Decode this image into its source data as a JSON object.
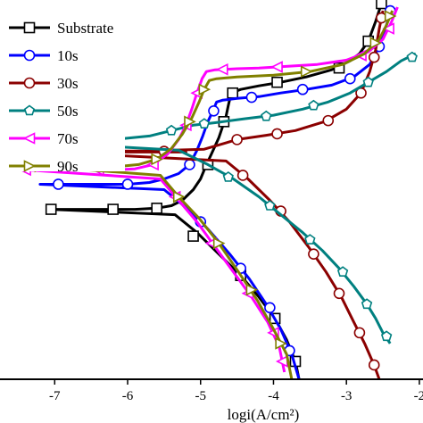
{
  "chart_data": {
    "type": "line",
    "title": "",
    "xlabel": "logi(A/cm²)",
    "ylabel": "",
    "xlim": [
      -7.75,
      -1.95
    ],
    "ylim": [
      -1.4,
      -0.34
    ],
    "x_ticks": [
      -7,
      -6,
      -5,
      -4,
      -3,
      -2
    ],
    "x_tick_labels": [
      "-7",
      "-6",
      "-5",
      "-4",
      "-3",
      "-2"
    ],
    "grid": false,
    "legend_position": "top-left",
    "series": [
      {
        "name": "Substrate",
        "color": "#000000",
        "marker": "square",
        "points": [
          [
            -7.05,
            -0.925
          ],
          [
            -6.6,
            -0.925
          ],
          [
            -6.2,
            -0.925
          ],
          [
            -5.9,
            -0.925
          ],
          [
            -5.6,
            -0.922
          ],
          [
            -5.4,
            -0.915
          ],
          [
            -5.25,
            -0.9
          ],
          [
            -5.1,
            -0.87
          ],
          [
            -5.0,
            -0.84
          ],
          [
            -4.93,
            -0.805
          ],
          [
            -4.85,
            -0.77
          ],
          [
            -4.75,
            -0.725
          ],
          [
            -4.7,
            -0.695
          ],
          [
            -4.65,
            -0.665
          ],
          [
            -4.62,
            -0.635
          ],
          [
            -4.58,
            -0.6
          ],
          [
            -4.45,
            -0.59
          ],
          [
            -4.2,
            -0.58
          ],
          [
            -3.9,
            -0.57
          ],
          [
            -3.55,
            -0.555
          ],
          [
            -3.2,
            -0.535
          ],
          [
            -2.95,
            -0.51
          ],
          [
            -2.82,
            -0.49
          ],
          [
            -2.7,
            -0.455
          ],
          [
            -2.6,
            -0.4
          ],
          [
            -2.52,
            -0.35
          ],
          [
            -5.35,
            -0.94
          ],
          [
            -5.05,
            -0.99
          ],
          [
            -4.75,
            -1.05
          ],
          [
            -4.45,
            -1.11
          ],
          [
            -4.2,
            -1.17
          ],
          [
            -3.98,
            -1.23
          ],
          [
            -3.82,
            -1.29
          ],
          [
            -3.7,
            -1.35
          ],
          [
            -3.65,
            -1.4
          ]
        ],
        "markers": [
          [
            -7.05,
            -0.925
          ],
          [
            -6.2,
            -0.925
          ],
          [
            -5.6,
            -0.922
          ],
          [
            -4.9,
            -0.8
          ],
          [
            -4.68,
            -0.68
          ],
          [
            -4.56,
            -0.6
          ],
          [
            -3.95,
            -0.57
          ],
          [
            -3.1,
            -0.53
          ],
          [
            -2.7,
            -0.455
          ],
          [
            -2.52,
            -0.35
          ],
          [
            -5.1,
            -1.0
          ],
          [
            -4.45,
            -1.11
          ],
          [
            -3.98,
            -1.23
          ],
          [
            -3.7,
            -1.35
          ]
        ]
      },
      {
        "name": "10s",
        "color": "#0000ff",
        "marker": "circle",
        "points": [
          [
            -7.2,
            -0.855
          ],
          [
            -6.7,
            -0.855
          ],
          [
            -6.35,
            -0.855
          ],
          [
            -6.0,
            -0.855
          ],
          [
            -5.7,
            -0.85
          ],
          [
            -5.5,
            -0.84
          ],
          [
            -5.3,
            -0.825
          ],
          [
            -5.15,
            -0.8
          ],
          [
            -5.05,
            -0.76
          ],
          [
            -4.97,
            -0.72
          ],
          [
            -4.9,
            -0.68
          ],
          [
            -4.83,
            -0.65
          ],
          [
            -4.78,
            -0.625
          ],
          [
            -4.7,
            -0.62
          ],
          [
            -4.5,
            -0.615
          ],
          [
            -4.2,
            -0.61
          ],
          [
            -3.9,
            -0.6
          ],
          [
            -3.55,
            -0.59
          ],
          [
            -3.2,
            -0.578
          ],
          [
            -2.9,
            -0.555
          ],
          [
            -2.68,
            -0.52
          ],
          [
            -2.55,
            -0.47
          ],
          [
            -2.45,
            -0.41
          ],
          [
            -2.38,
            -0.36
          ],
          [
            -5.5,
            -0.87
          ],
          [
            -5.2,
            -0.92
          ],
          [
            -4.9,
            -0.98
          ],
          [
            -4.6,
            -1.05
          ],
          [
            -4.33,
            -1.12
          ],
          [
            -4.1,
            -1.19
          ],
          [
            -3.9,
            -1.26
          ],
          [
            -3.75,
            -1.33
          ],
          [
            -3.65,
            -1.4
          ]
        ],
        "markers": [
          [
            -6.95,
            -0.855
          ],
          [
            -6.0,
            -0.855
          ],
          [
            -5.15,
            -0.8
          ],
          [
            -4.82,
            -0.65
          ],
          [
            -4.3,
            -0.612
          ],
          [
            -3.6,
            -0.59
          ],
          [
            -2.95,
            -0.56
          ],
          [
            -2.55,
            -0.47
          ],
          [
            -2.4,
            -0.37
          ],
          [
            -5.0,
            -0.96
          ],
          [
            -4.45,
            -1.09
          ],
          [
            -4.05,
            -1.2
          ],
          [
            -3.78,
            -1.32
          ]
        ]
      },
      {
        "name": "30s",
        "color": "#8b0000",
        "marker": "circle",
        "points": [
          [
            -7.05,
            -0.765
          ],
          [
            -6.6,
            -0.763
          ],
          [
            -6.2,
            -0.762
          ],
          [
            -5.8,
            -0.762
          ],
          [
            -5.5,
            -0.763
          ],
          [
            -5.2,
            -0.765
          ],
          [
            -4.95,
            -0.757
          ],
          [
            -4.75,
            -0.745
          ],
          [
            -4.5,
            -0.73
          ],
          [
            -4.1,
            -0.718
          ],
          [
            -3.7,
            -0.705
          ],
          [
            -3.3,
            -0.68
          ],
          [
            -3.0,
            -0.645
          ],
          [
            -2.8,
            -0.6
          ],
          [
            -2.68,
            -0.54
          ],
          [
            -2.6,
            -0.48
          ],
          [
            -2.55,
            -0.42
          ],
          [
            -2.5,
            -0.37
          ],
          [
            -4.65,
            -0.79
          ],
          [
            -4.35,
            -0.84
          ],
          [
            -4.05,
            -0.9
          ],
          [
            -3.78,
            -0.96
          ],
          [
            -3.52,
            -1.03
          ],
          [
            -3.28,
            -1.1
          ],
          [
            -3.07,
            -1.17
          ],
          [
            -2.9,
            -1.24
          ],
          [
            -2.75,
            -1.3
          ],
          [
            -2.62,
            -1.36
          ],
          [
            -2.55,
            -1.4
          ]
        ],
        "markers": [
          [
            -7.05,
            -0.765
          ],
          [
            -6.2,
            -0.762
          ],
          [
            -5.5,
            -0.763
          ],
          [
            -4.5,
            -0.73
          ],
          [
            -3.95,
            -0.714
          ],
          [
            -3.25,
            -0.677
          ],
          [
            -2.8,
            -0.6
          ],
          [
            -2.62,
            -0.5
          ],
          [
            -2.52,
            -0.39
          ],
          [
            -4.42,
            -0.83
          ],
          [
            -3.9,
            -0.93
          ],
          [
            -3.45,
            -1.05
          ],
          [
            -3.1,
            -1.16
          ],
          [
            -2.82,
            -1.27
          ],
          [
            -2.62,
            -1.36
          ]
        ]
      },
      {
        "name": "50s",
        "color": "#008080",
        "marker": "pentagon",
        "points": [
          [
            -7.75,
            -0.732
          ],
          [
            -7.2,
            -0.732
          ],
          [
            -6.6,
            -0.73
          ],
          [
            -6.1,
            -0.728
          ],
          [
            -5.7,
            -0.72
          ],
          [
            -5.4,
            -0.705
          ],
          [
            -5.1,
            -0.69
          ],
          [
            -4.8,
            -0.683
          ],
          [
            -4.4,
            -0.672
          ],
          [
            -4.0,
            -0.662
          ],
          [
            -3.6,
            -0.645
          ],
          [
            -3.25,
            -0.625
          ],
          [
            -2.95,
            -0.6
          ],
          [
            -2.7,
            -0.57
          ],
          [
            -2.45,
            -0.54
          ],
          [
            -2.25,
            -0.51
          ],
          [
            -2.05,
            -0.49
          ],
          [
            -5.3,
            -0.76
          ],
          [
            -4.9,
            -0.8
          ],
          [
            -4.55,
            -0.84
          ],
          [
            -4.2,
            -0.89
          ],
          [
            -3.9,
            -0.94
          ],
          [
            -3.6,
            -0.99
          ],
          [
            -3.33,
            -1.04
          ],
          [
            -3.1,
            -1.09
          ],
          [
            -2.9,
            -1.14
          ],
          [
            -2.72,
            -1.19
          ],
          [
            -2.6,
            -1.23
          ],
          [
            -2.5,
            -1.27
          ],
          [
            -2.4,
            -1.3
          ]
        ],
        "markers": [
          [
            -5.4,
            -0.705
          ],
          [
            -4.95,
            -0.686
          ],
          [
            -4.1,
            -0.665
          ],
          [
            -3.45,
            -0.635
          ],
          [
            -2.7,
            -0.57
          ],
          [
            -2.1,
            -0.5
          ],
          [
            -4.62,
            -0.835
          ],
          [
            -4.05,
            -0.915
          ],
          [
            -3.5,
            -1.01
          ],
          [
            -3.05,
            -1.1
          ],
          [
            -2.72,
            -1.19
          ],
          [
            -2.45,
            -1.28
          ]
        ]
      },
      {
        "name": "70s",
        "color": "#ff00ff",
        "marker": "triangle-left",
        "points": [
          [
            -7.4,
            -0.815
          ],
          [
            -7.0,
            -0.815
          ],
          [
            -6.6,
            -0.815
          ],
          [
            -6.2,
            -0.815
          ],
          [
            -5.9,
            -0.812
          ],
          [
            -5.65,
            -0.8
          ],
          [
            -5.45,
            -0.77
          ],
          [
            -5.3,
            -0.73
          ],
          [
            -5.2,
            -0.69
          ],
          [
            -5.12,
            -0.645
          ],
          [
            -5.05,
            -0.6
          ],
          [
            -4.98,
            -0.56
          ],
          [
            -4.92,
            -0.54
          ],
          [
            -4.8,
            -0.535
          ],
          [
            -4.5,
            -0.532
          ],
          [
            -4.2,
            -0.53
          ],
          [
            -3.8,
            -0.525
          ],
          [
            -3.4,
            -0.52
          ],
          [
            -3.0,
            -0.508
          ],
          [
            -2.7,
            -0.485
          ],
          [
            -2.5,
            -0.45
          ],
          [
            -2.38,
            -0.4
          ],
          [
            -2.3,
            -0.36
          ],
          [
            -5.55,
            -0.84
          ],
          [
            -5.3,
            -0.9
          ],
          [
            -5.05,
            -0.96
          ],
          [
            -4.8,
            -1.03
          ],
          [
            -4.55,
            -1.1
          ],
          [
            -4.3,
            -1.17
          ],
          [
            -4.08,
            -1.24
          ],
          [
            -3.92,
            -1.31
          ],
          [
            -3.85,
            -1.38
          ]
        ],
        "markers": [
          [
            -7.4,
            -0.815
          ],
          [
            -6.4,
            -0.815
          ],
          [
            -5.65,
            -0.8
          ],
          [
            -5.2,
            -0.69
          ],
          [
            -5.05,
            -0.6
          ],
          [
            -4.7,
            -0.534
          ],
          [
            -3.95,
            -0.527
          ],
          [
            -2.8,
            -0.495
          ],
          [
            -2.42,
            -0.42
          ],
          [
            -5.35,
            -0.89
          ],
          [
            -4.85,
            -1.02
          ],
          [
            -4.35,
            -1.16
          ],
          [
            -4.0,
            -1.27
          ],
          [
            -3.88,
            -1.35
          ]
        ]
      },
      {
        "name": "90s",
        "color": "#808000",
        "marker": "triangle-right",
        "points": [
          [
            -7.2,
            -0.805
          ],
          [
            -6.8,
            -0.805
          ],
          [
            -6.45,
            -0.805
          ],
          [
            -6.1,
            -0.805
          ],
          [
            -5.85,
            -0.8
          ],
          [
            -5.6,
            -0.785
          ],
          [
            -5.4,
            -0.755
          ],
          [
            -5.25,
            -0.715
          ],
          [
            -5.12,
            -0.67
          ],
          [
            -5.02,
            -0.625
          ],
          [
            -4.95,
            -0.59
          ],
          [
            -4.88,
            -0.565
          ],
          [
            -4.78,
            -0.56
          ],
          [
            -4.5,
            -0.555
          ],
          [
            -4.0,
            -0.55
          ],
          [
            -3.5,
            -0.54
          ],
          [
            -3.05,
            -0.52
          ],
          [
            -2.75,
            -0.49
          ],
          [
            -2.55,
            -0.45
          ],
          [
            -2.45,
            -0.41
          ],
          [
            -2.37,
            -0.37
          ],
          [
            -5.55,
            -0.83
          ],
          [
            -5.3,
            -0.89
          ],
          [
            -5.02,
            -0.95
          ],
          [
            -4.75,
            -1.02
          ],
          [
            -4.48,
            -1.1
          ],
          [
            -4.22,
            -1.18
          ],
          [
            -4.0,
            -1.26
          ],
          [
            -3.82,
            -1.33
          ],
          [
            -3.75,
            -1.4
          ]
        ],
        "markers": [
          [
            -7.2,
            -0.805
          ],
          [
            -6.2,
            -0.805
          ],
          [
            -5.6,
            -0.785
          ],
          [
            -5.15,
            -0.68
          ],
          [
            -4.95,
            -0.59
          ],
          [
            -3.55,
            -0.54
          ],
          [
            -2.6,
            -0.46
          ],
          [
            -2.4,
            -0.385
          ],
          [
            -5.3,
            -0.89
          ],
          [
            -4.75,
            -1.02
          ],
          [
            -4.3,
            -1.15
          ],
          [
            -3.9,
            -1.3
          ]
        ]
      }
    ]
  }
}
